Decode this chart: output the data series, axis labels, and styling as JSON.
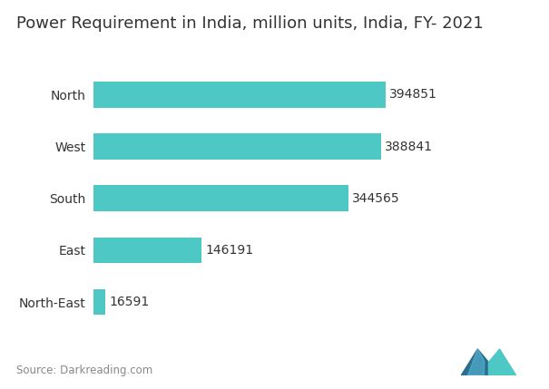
{
  "title": "Power Requirement in India, million units, India, FY- 2021",
  "categories": [
    "North-East",
    "East",
    "South",
    "West",
    "North"
  ],
  "values": [
    16591,
    146191,
    344565,
    388841,
    394851
  ],
  "bar_color": "#4EC8C4",
  "label_color": "#333333",
  "background_color": "#ffffff",
  "source_text": "Source: Darkreading.com",
  "title_fontsize": 13,
  "label_fontsize": 10,
  "value_fontsize": 10,
  "source_fontsize": 8.5,
  "xlim": [
    0,
    460000
  ]
}
